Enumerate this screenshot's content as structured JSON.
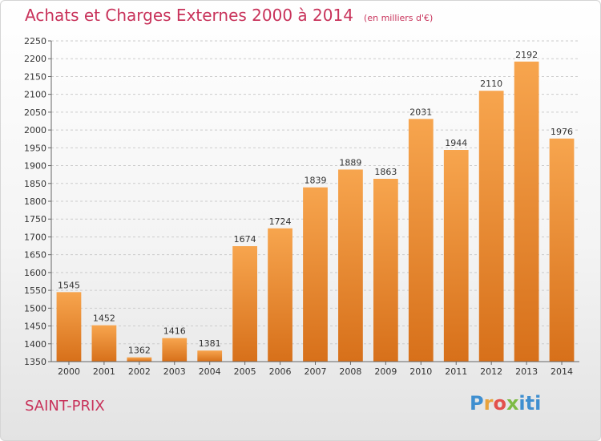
{
  "chart_data": {
    "type": "bar",
    "title": "Achats et Charges Externes 2000 à 2014",
    "subtitle": "(en milliers d'€)",
    "categories": [
      "2000",
      "2001",
      "2002",
      "2003",
      "2004",
      "2005",
      "2006",
      "2007",
      "2008",
      "2009",
      "2010",
      "2011",
      "2012",
      "2013",
      "2014"
    ],
    "values": [
      1545,
      1452,
      1362,
      1416,
      1381,
      1674,
      1724,
      1839,
      1889,
      1863,
      2031,
      1944,
      2110,
      2192,
      1976
    ],
    "ylim": [
      1350,
      2250
    ],
    "yticks": [
      1350,
      1400,
      1450,
      1500,
      1550,
      1600,
      1650,
      1700,
      1750,
      1800,
      1850,
      1900,
      1950,
      2000,
      2050,
      2100,
      2150,
      2200,
      2250
    ],
    "xlabel": "",
    "ylabel": "",
    "grid": true,
    "bar_color": "#f0922e"
  },
  "footer": {
    "commune": "SAINT-PRIX",
    "logo": "Proxiti"
  }
}
